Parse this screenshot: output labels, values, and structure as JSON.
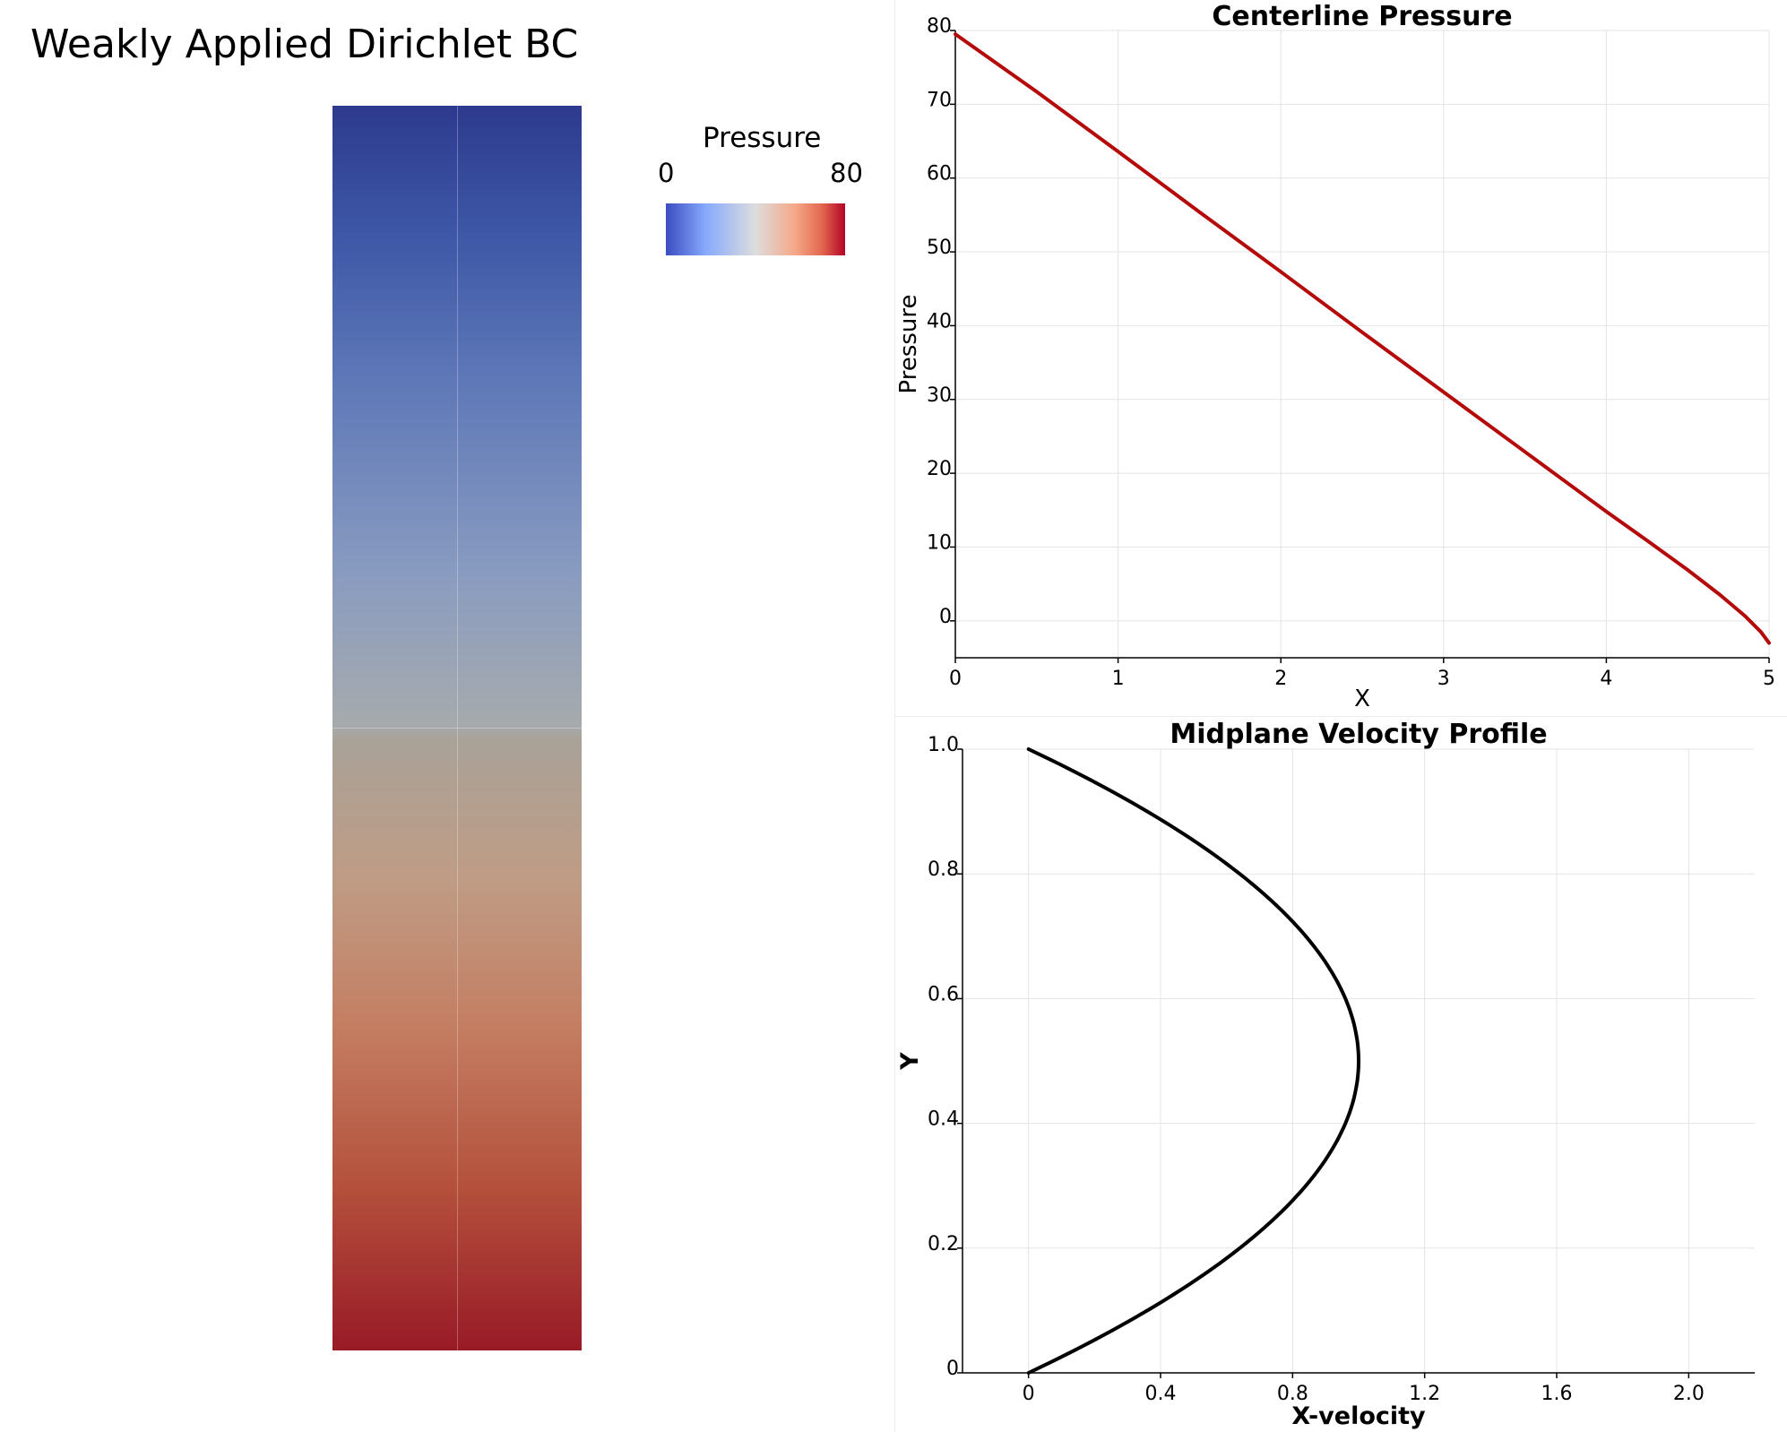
{
  "left_panel": {
    "title": "Weakly Applied Dirichlet BC",
    "legend": {
      "title": "Pressure",
      "min_label": "0",
      "max_label": "80"
    }
  },
  "chart_data": [
    {
      "type": "line",
      "title": "Centerline Pressure",
      "xlabel": "X",
      "ylabel": "Pressure",
      "xlim": [
        0,
        5
      ],
      "ylim": [
        -5,
        80
      ],
      "xticks": [
        "0",
        "1",
        "2",
        "3",
        "4",
        "5"
      ],
      "yticks": [
        "0",
        "10",
        "20",
        "30",
        "40",
        "50",
        "60",
        "70",
        "80"
      ],
      "grid": true,
      "line_color": "#b40a0a",
      "series": [
        {
          "x": [
            0,
            0.5,
            1,
            1.5,
            2,
            2.5,
            3,
            3.5,
            4,
            4.25,
            4.5,
            4.7,
            4.85,
            4.95,
            5
          ],
          "y": [
            79.5,
            71.7,
            63.6,
            55.4,
            47.3,
            39.1,
            31.0,
            22.9,
            14.8,
            10.9,
            6.9,
            3.5,
            0.7,
            -1.5,
            -3.0
          ]
        }
      ]
    },
    {
      "type": "line",
      "title": "Midplane Velocity Profile",
      "xlabel": "X-velocity",
      "ylabel": "Y",
      "xlim": [
        -0.2,
        2.2
      ],
      "ylim": [
        0,
        1.0
      ],
      "xticks": [
        "0",
        "0.4",
        "0.8",
        "1.2",
        "1.6",
        "2.0"
      ],
      "yticks": [
        "0",
        "0.2",
        "0.4",
        "0.6",
        "0.8",
        "1.0"
      ],
      "grid": true,
      "line_color": "#000000",
      "series": [
        {
          "x": [
            0,
            0.36,
            0.64,
            0.84,
            0.96,
            1.0,
            0.96,
            0.84,
            0.64,
            0.36,
            0
          ],
          "y": [
            0,
            0.1,
            0.2,
            0.3,
            0.4,
            0.5,
            0.6,
            0.7,
            0.8,
            0.9,
            1.0
          ],
          "x_scale": 2.0
        }
      ]
    }
  ]
}
